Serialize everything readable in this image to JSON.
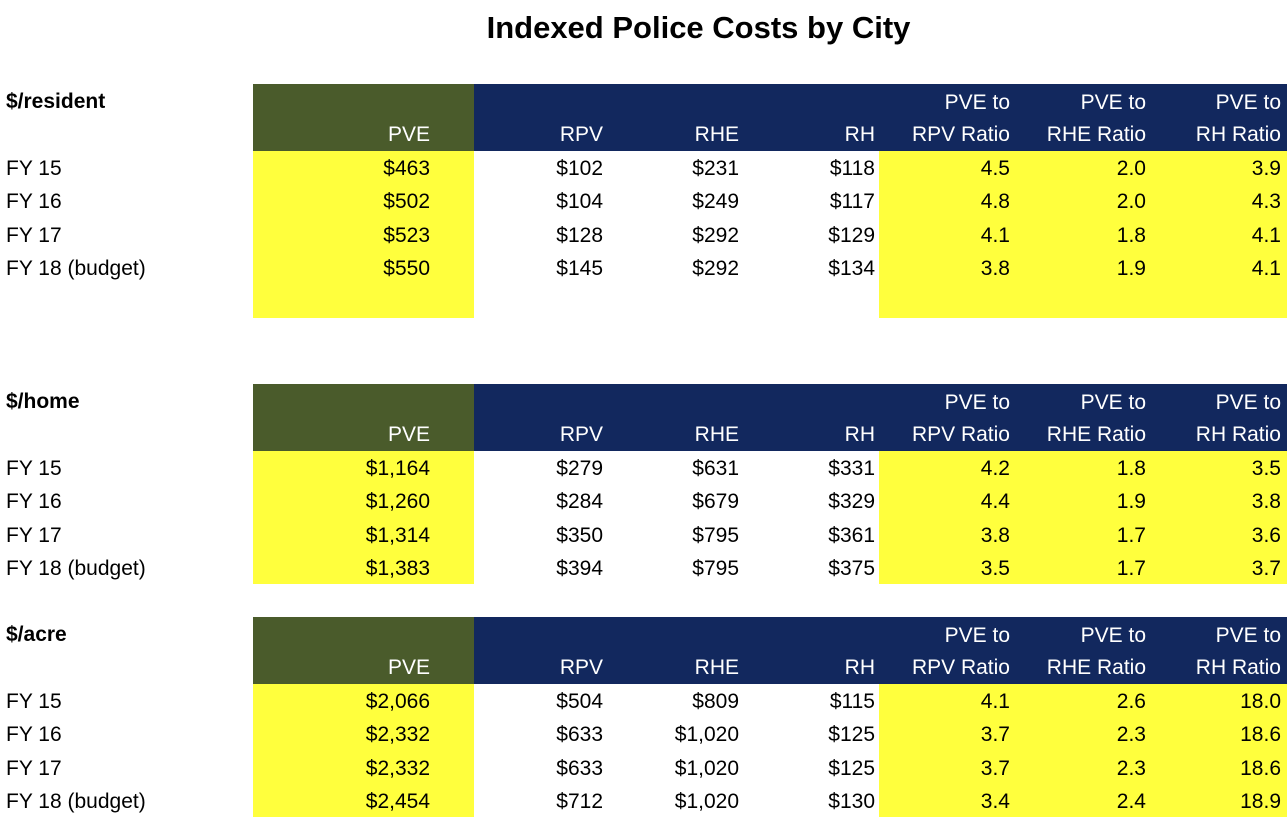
{
  "title": "Indexed Police Costs by City",
  "colors": {
    "pve_header": "#4a5b2b",
    "header": "#12285e",
    "highlight": "#ffff3d"
  },
  "header_top": [
    "",
    "",
    "",
    "",
    "PVE to",
    "PVE to",
    "PVE to"
  ],
  "header_bottom": [
    "PVE",
    "RPV",
    "RHE",
    "RH",
    "RPV Ratio",
    "RHE Ratio",
    "RH Ratio"
  ],
  "sections": [
    {
      "label": "$/resident",
      "rows": [
        {
          "label": "FY 15",
          "values": [
            "$463",
            "$102",
            "$231",
            "$118",
            "4.5",
            "2.0",
            "3.9"
          ]
        },
        {
          "label": "FY 16",
          "values": [
            "$502",
            "$104",
            "$249",
            "$117",
            "4.8",
            "2.0",
            "4.3"
          ]
        },
        {
          "label": "FY 17",
          "values": [
            "$523",
            "$128",
            "$292",
            "$129",
            "4.1",
            "1.8",
            "4.1"
          ]
        },
        {
          "label": "FY 18 (budget)",
          "values": [
            "$550",
            "$145",
            "$292",
            "$134",
            "3.8",
            "1.9",
            "4.1"
          ]
        }
      ]
    },
    {
      "label": "$/home",
      "rows": [
        {
          "label": "FY 15",
          "values": [
            "$1,164",
            "$279",
            "$631",
            "$331",
            "4.2",
            "1.8",
            "3.5"
          ]
        },
        {
          "label": "FY 16",
          "values": [
            "$1,260",
            "$284",
            "$679",
            "$329",
            "4.4",
            "1.9",
            "3.8"
          ]
        },
        {
          "label": "FY 17",
          "values": [
            "$1,314",
            "$350",
            "$795",
            "$361",
            "3.8",
            "1.7",
            "3.6"
          ]
        },
        {
          "label": "FY 18 (budget)",
          "values": [
            "$1,383",
            "$394",
            "$795",
            "$375",
            "3.5",
            "1.7",
            "3.7"
          ]
        }
      ]
    },
    {
      "label": "$/acre",
      "rows": [
        {
          "label": "FY 15",
          "values": [
            "$2,066",
            "$504",
            "$809",
            "$115",
            "4.1",
            "2.6",
            "18.0"
          ]
        },
        {
          "label": "FY 16",
          "values": [
            "$2,332",
            "$633",
            "$1,020",
            "$125",
            "3.7",
            "2.3",
            "18.6"
          ]
        },
        {
          "label": "FY 17",
          "values": [
            "$2,332",
            "$633",
            "$1,020",
            "$125",
            "3.7",
            "2.3",
            "18.6"
          ]
        },
        {
          "label": "FY 18 (budget)",
          "values": [
            "$2,454",
            "$712",
            "$1,020",
            "$130",
            "3.4",
            "2.4",
            "18.9"
          ]
        }
      ]
    }
  ]
}
